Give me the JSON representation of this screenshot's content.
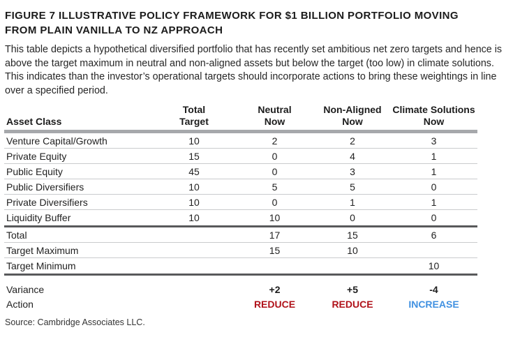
{
  "figure": {
    "title_lines": [
      "FIGURE 7  ILLUSTRATIVE POLICY FRAMEWORK FOR $1 BILLION PORTFOLIO MOVING",
      "FROM PLAIN VANILLA TO NZ APPROACH"
    ],
    "description": "This table depicts a hypothetical diversified portfolio that has recently set ambitious net zero targets and hence is above the target maximum in neutral and non-aligned assets but below the target (too low) in climate solutions. This indicates than the investor’s operational targets should incorporate actions to bring these weightings in line over a specified period.",
    "source": "Source: Cambridge Associates LLC."
  },
  "colors": {
    "reduce_red": "#b0121a",
    "increase_blue": "#4191e1",
    "header_bar_gray": "#a6a8ab",
    "section_line_dark": "#58595b",
    "row_line_light": "#c9cbcd"
  },
  "table": {
    "row_header": "Asset Class",
    "columns": [
      {
        "line1": "Total",
        "line2": "Target"
      },
      {
        "line1": "Neutral",
        "line2": "Now"
      },
      {
        "line1": "Non-Aligned",
        "line2": "Now"
      },
      {
        "line1": "Climate Solutions",
        "line2": "Now"
      }
    ],
    "rows": [
      {
        "label": "Venture Capital/Growth",
        "values": [
          "10",
          "2",
          "2",
          "3"
        ]
      },
      {
        "label": "Private Equity",
        "values": [
          "15",
          "0",
          "4",
          "1"
        ]
      },
      {
        "label": "Public Equity",
        "values": [
          "45",
          "0",
          "3",
          "1"
        ]
      },
      {
        "label": "Public Diversifiers",
        "values": [
          "10",
          "5",
          "5",
          "0"
        ]
      },
      {
        "label": "Private Diversifiers",
        "values": [
          "10",
          "0",
          "1",
          "1"
        ]
      },
      {
        "label": "Liquidity Buffer",
        "values": [
          "10",
          "10",
          "0",
          "0"
        ]
      }
    ],
    "summary_rows": [
      {
        "label": "Total",
        "values": [
          "",
          "17",
          "15",
          "6"
        ]
      },
      {
        "label": "Target Maximum",
        "values": [
          "",
          "15",
          "10",
          ""
        ]
      },
      {
        "label": "Target Minimum",
        "values": [
          "",
          "",
          "",
          "10"
        ]
      }
    ],
    "variance": {
      "label": "Variance",
      "values": [
        "",
        "+2",
        "+5",
        "-4"
      ]
    },
    "action": {
      "label": "Action",
      "values": [
        "",
        "REDUCE",
        "REDUCE",
        "INCREASE"
      ]
    }
  }
}
